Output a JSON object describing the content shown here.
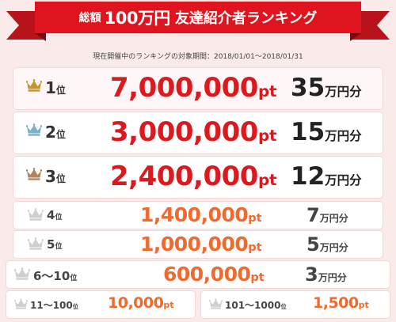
{
  "banner": {
    "prefix": "総額",
    "amount": "100万円",
    "title": "友達紹介者ランキング"
  },
  "period_text": "現在開催中のランキングの対象期間：2018/01/01〜2018/01/31",
  "units": {
    "rank": "位",
    "points": "pt",
    "reward": "万円分"
  },
  "colors": {
    "banner_red": "#e0141f",
    "points_red": "#dd1920",
    "points_orange": "#f06a2e",
    "crown_gold": "#c6962b",
    "crown_blue": "#79b2c6",
    "crown_bronze": "#b08560",
    "crown_gray": "#cfcfcf"
  },
  "ranks": [
    {
      "rank": "1",
      "points": "7,000,000",
      "reward": "35",
      "crown": "crown-gold-icon"
    },
    {
      "rank": "2",
      "points": "3,000,000",
      "reward": "15",
      "crown": "crown-silver-icon"
    },
    {
      "rank": "3",
      "points": "2,400,000",
      "reward": "12",
      "crown": "crown-bronze-icon"
    },
    {
      "rank": "4",
      "points": "1,400,000",
      "reward": "7",
      "crown": "crown-gray-icon"
    },
    {
      "rank": "5",
      "points": "1,000,000",
      "reward": "5",
      "crown": "crown-gray-icon"
    },
    {
      "rank": "6～10",
      "points": "600,000",
      "reward": "3",
      "crown": "crown-gray-icon"
    },
    {
      "rank": "11～100",
      "points": "10,000",
      "crown": "crown-gray-icon"
    },
    {
      "rank": "101～1000",
      "points": "1,500",
      "crown": "crown-gray-icon"
    }
  ]
}
